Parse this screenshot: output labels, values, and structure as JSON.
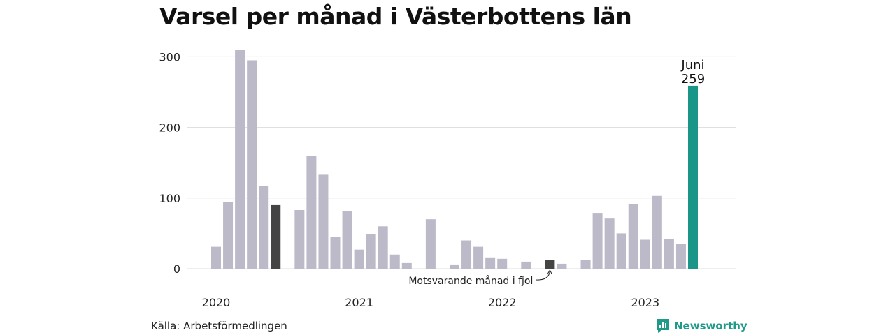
{
  "title": "Varsel per månad i Västerbottens län",
  "source": "Källa: Arbetsförmedlingen",
  "brand": "Newsworthy",
  "chart_data": {
    "type": "bar",
    "ylim": [
      0,
      320
    ],
    "yticks": [
      0,
      100,
      200,
      300
    ],
    "year_labels": [
      "2020",
      "2021",
      "2022",
      "2023"
    ],
    "values": [
      31,
      94,
      310,
      295,
      117,
      90,
      0,
      83,
      160,
      133,
      45,
      82,
      27,
      49,
      60,
      20,
      8,
      0,
      70,
      0,
      6,
      40,
      31,
      16,
      14,
      0,
      10,
      0,
      12,
      7,
      0,
      12,
      79,
      71,
      50,
      91,
      41,
      103,
      42,
      35,
      259
    ],
    "highlight_index": 40,
    "comparison_indices": [
      5,
      28
    ],
    "highlight_label_month": "Juni",
    "highlight_label_value": "259",
    "annotation": "Motsvarande månad i fjol",
    "colors": {
      "bar": "#bcbac8",
      "comparison": "#444444",
      "highlight": "#1a9688",
      "grid": "#dcdcdc"
    }
  }
}
